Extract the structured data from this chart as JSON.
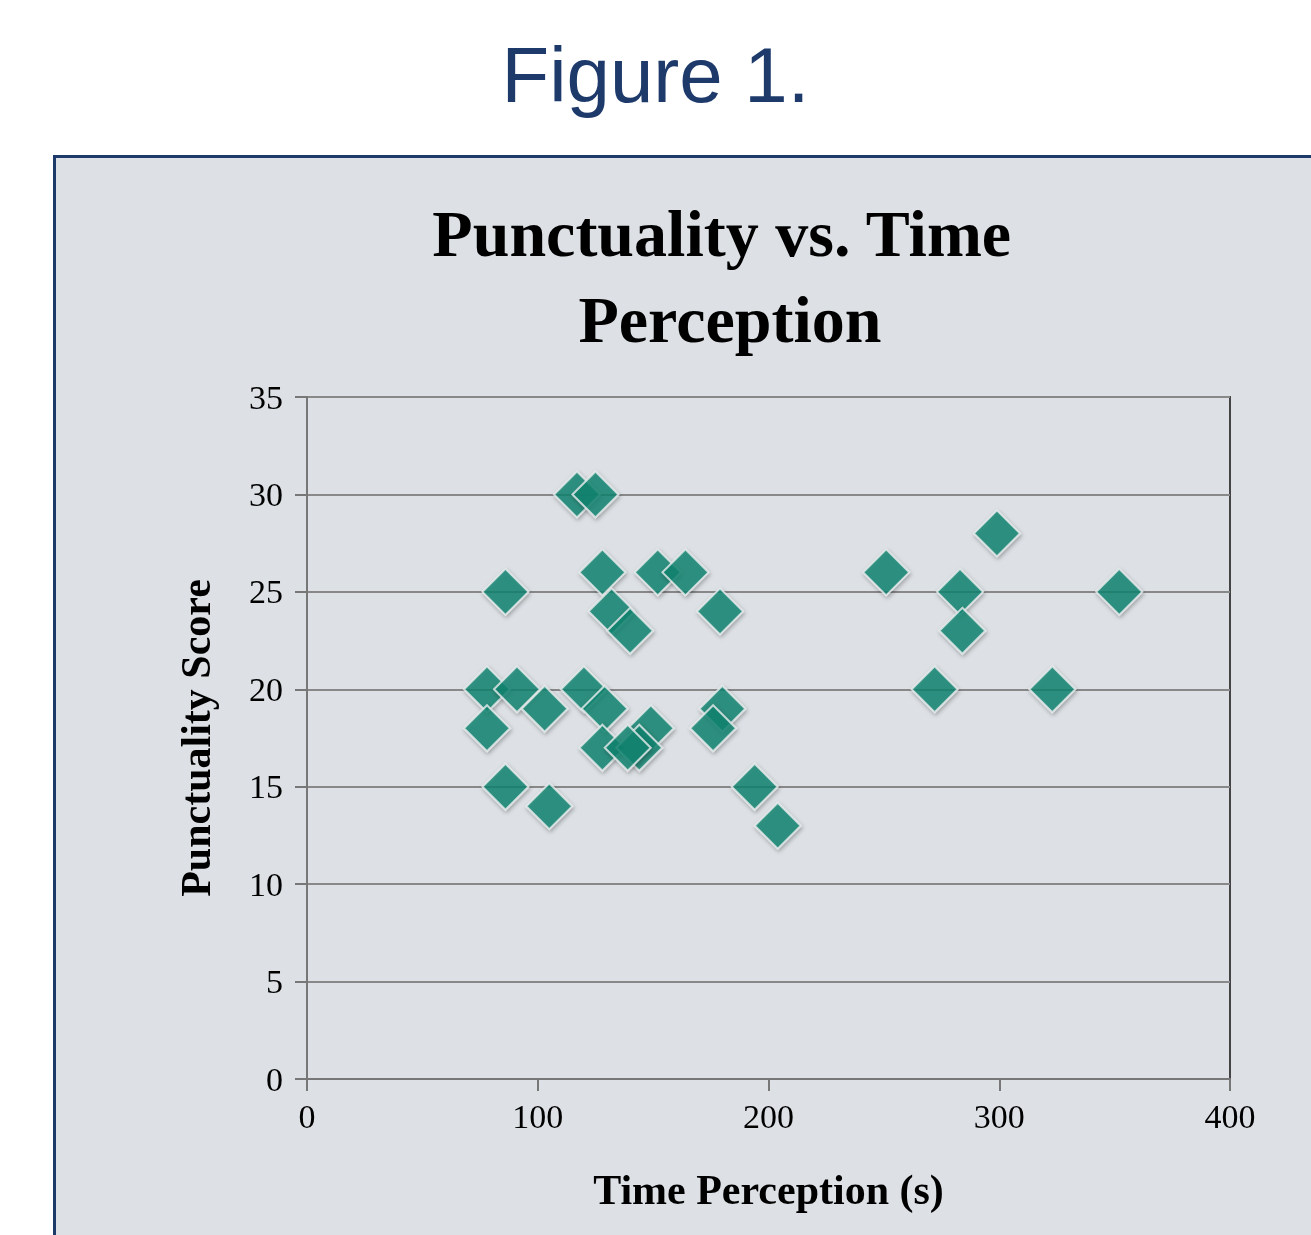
{
  "chart_data": {
    "type": "scatter",
    "title": "Punctuality vs. Time Perception",
    "xlabel": "Time Perception (s)",
    "ylabel": "Punctuality Score",
    "annotations": [
      "Figure 1."
    ],
    "x": [
      117,
      125,
      86,
      128,
      152,
      164,
      132,
      140,
      179,
      78,
      91,
      120,
      103,
      129,
      78,
      149,
      180,
      176,
      128,
      144,
      139,
      86,
      105,
      194,
      204,
      251,
      299,
      283,
      284,
      272,
      323,
      352
    ],
    "values": [
      30,
      30,
      25,
      26,
      26,
      26,
      24,
      23,
      24,
      20,
      20,
      20,
      19,
      19,
      18,
      18,
      19,
      18,
      17,
      17,
      17,
      15,
      14,
      15,
      13,
      26,
      28,
      25,
      23,
      20,
      20,
      25
    ],
    "color": "#0e8470",
    "marker": "diamond",
    "xlim": [
      0,
      400
    ],
    "xticks": [
      0,
      100,
      200,
      300,
      400
    ],
    "ylim": [
      0,
      35
    ],
    "yticks": [
      0,
      5,
      10,
      15,
      20,
      25,
      30,
      35
    ],
    "grid": "y"
  }
}
